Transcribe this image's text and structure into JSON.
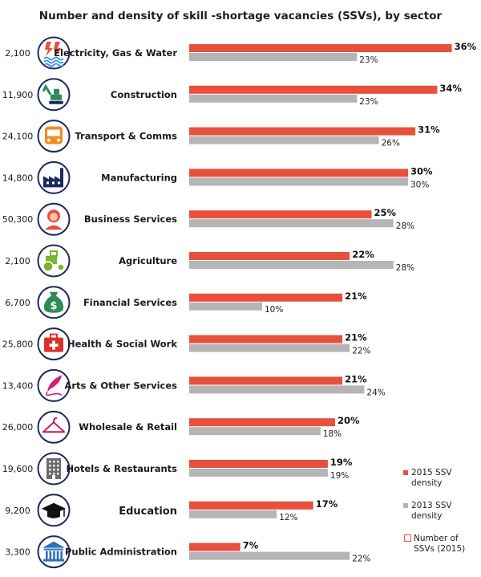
{
  "chart_data": {
    "type": "bar",
    "title": "Number and density of skill  -shortage vacancies (SSVs), by sector",
    "categories": [
      "Electricity, Gas & Water",
      "Construction",
      "Transport & Comms",
      "Manufacturing",
      "Business Services",
      "Agriculture",
      "Financial Services",
      "Health & Social Work",
      "Arts & Other Services",
      "Wholesale & Retail",
      "Hotels & Restaurants",
      "Education",
      "Public Administration"
    ],
    "icons": [
      "lightning-water-icon",
      "excavator-icon",
      "bus-icon",
      "factory-icon",
      "person-icon",
      "tractor-icon",
      "money-bag-icon",
      "first-aid-kit-icon",
      "quill-icon",
      "hanger-icon",
      "hotel-building-icon",
      "graduation-cap-icon",
      "government-building-icon"
    ],
    "counts": [
      "2,100",
      "11,900",
      "24,100",
      "14,800",
      "50,300",
      "2,100",
      "6,700",
      "25,800",
      "13,400",
      "26,000",
      "19,600",
      "9,200",
      "3,300"
    ],
    "series": [
      {
        "name": "2015 SSV density",
        "values": [
          36,
          34,
          31,
          30,
          25,
          22,
          21,
          21,
          21,
          20,
          19,
          17,
          7
        ],
        "color": "#e8503e"
      },
      {
        "name": "2013 SSV density",
        "values": [
          23,
          23,
          26,
          30,
          28,
          28,
          10,
          22,
          24,
          18,
          19,
          12,
          22
        ],
        "color": "#b5b5b7"
      }
    ],
    "value_suffix": "%",
    "legend": {
      "placement": "bottom-right",
      "items": [
        {
          "line1": "2015 SSV",
          "line2": "density",
          "color": "#e8503e"
        },
        {
          "line1": "2013 SSV",
          "line2": "density",
          "color": "#b5b5b7"
        },
        {
          "line1": "Number of",
          "line2": "SSVs  (2015)",
          "color": "#e8503e"
        }
      ]
    },
    "xlim": [
      0,
      36
    ],
    "accent_icon_color": "#1b2a5c"
  }
}
